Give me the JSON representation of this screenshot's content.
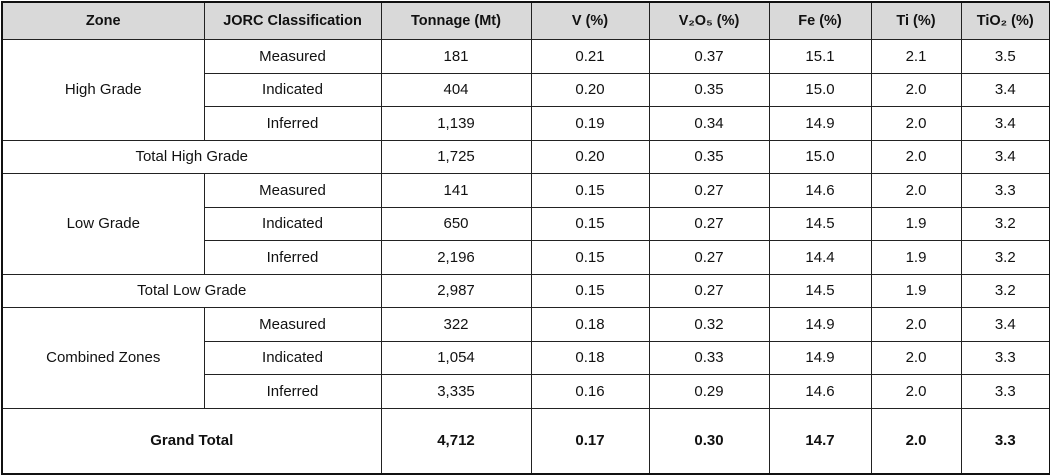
{
  "table": {
    "header": [
      "Zone",
      "JORC Classification",
      "Tonnage (Mt)",
      "V (%)",
      "V₂O₅ (%)",
      "Fe (%)",
      "Ti (%)",
      "TiO₂ (%)"
    ],
    "groups": [
      {
        "zone": "High Grade",
        "rows": [
          [
            "Measured",
            "181",
            "0.21",
            "0.37",
            "15.1",
            "2.1",
            "3.5"
          ],
          [
            "Indicated",
            "404",
            "0.20",
            "0.35",
            "15.0",
            "2.0",
            "3.4"
          ],
          [
            "Inferred",
            "1,139",
            "0.19",
            "0.34",
            "14.9",
            "2.0",
            "3.4"
          ]
        ],
        "total": {
          "label": "Total High Grade",
          "values": [
            "1,725",
            "0.20",
            "0.35",
            "15.0",
            "2.0",
            "3.4"
          ]
        }
      },
      {
        "zone": "Low Grade",
        "rows": [
          [
            "Measured",
            "141",
            "0.15",
            "0.27",
            "14.6",
            "2.0",
            "3.3"
          ],
          [
            "Indicated",
            "650",
            "0.15",
            "0.27",
            "14.5",
            "1.9",
            "3.2"
          ],
          [
            "Inferred",
            "2,196",
            "0.15",
            "0.27",
            "14.4",
            "1.9",
            "3.2"
          ]
        ],
        "total": {
          "label": "Total Low Grade",
          "values": [
            "2,987",
            "0.15",
            "0.27",
            "14.5",
            "1.9",
            "3.2"
          ]
        }
      },
      {
        "zone": "Combined Zones",
        "rows": [
          [
            "Measured",
            "322",
            "0.18",
            "0.32",
            "14.9",
            "2.0",
            "3.4"
          ],
          [
            "Indicated",
            "1,054",
            "0.18",
            "0.33",
            "14.9",
            "2.0",
            "3.3"
          ],
          [
            "Inferred",
            "3,335",
            "0.16",
            "0.29",
            "14.6",
            "2.0",
            "3.3"
          ]
        ]
      }
    ],
    "grand_total": {
      "label": "Grand Total",
      "values": [
        "4,712",
        "0.17",
        "0.30",
        "14.7",
        "2.0",
        "3.3"
      ]
    }
  }
}
